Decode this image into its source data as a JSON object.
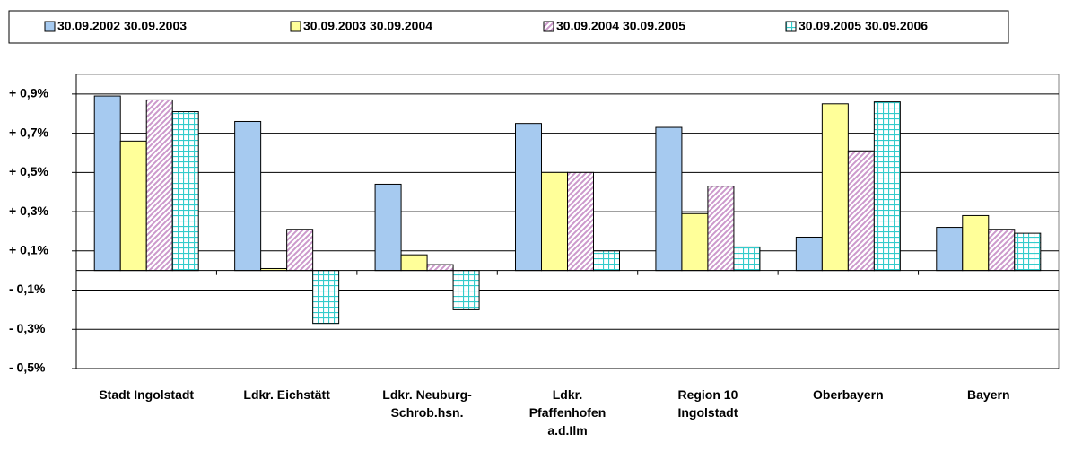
{
  "chart_data": {
    "type": "bar",
    "categories": [
      "Stadt Ingolstadt",
      "Ldkr. Eichstätt",
      "Ldkr. Neuburg-\nSchrob.hsn.",
      "Ldkr.\nPfaffenhofen\na.d.Ilm",
      "Region 10\nIngolstadt",
      "Oberbayern",
      "Bayern"
    ],
    "series": [
      {
        "name": "30.09.2002 30.09.2003",
        "color": "#a6caf0",
        "pattern": "solid",
        "values": [
          0.89,
          0.76,
          0.44,
          0.75,
          0.73,
          0.17,
          0.22
        ]
      },
      {
        "name": "30.09.2003 30.09.2004",
        "color": "#ffff99",
        "pattern": "solid",
        "values": [
          0.66,
          0.01,
          0.08,
          0.5,
          0.29,
          0.85,
          0.28
        ]
      },
      {
        "name": "30.09.2004 30.09.2005",
        "color": "#cc99cc",
        "pattern": "diagonal",
        "values": [
          0.87,
          0.21,
          0.03,
          0.5,
          0.43,
          0.61,
          0.21
        ]
      },
      {
        "name": "30.09.2005 30.09.2006",
        "color": "#33cccc",
        "pattern": "grid",
        "values": [
          0.81,
          -0.27,
          -0.2,
          0.1,
          0.12,
          0.86,
          0.19
        ]
      }
    ],
    "ylim": [
      -0.5,
      1.0
    ],
    "yticks": [
      {
        "value": 0.9,
        "label": "+ 0,9%"
      },
      {
        "value": 0.7,
        "label": "+ 0,7%"
      },
      {
        "value": 0.5,
        "label": "+ 0,5%"
      },
      {
        "value": 0.3,
        "label": "+ 0,3%"
      },
      {
        "value": 0.1,
        "label": "+ 0,1%"
      },
      {
        "value": -0.1,
        "label": "- 0,1%"
      },
      {
        "value": -0.3,
        "label": "- 0,3%"
      },
      {
        "value": -0.5,
        "label": "- 0,5%"
      }
    ],
    "grid": true,
    "legend": "top"
  }
}
